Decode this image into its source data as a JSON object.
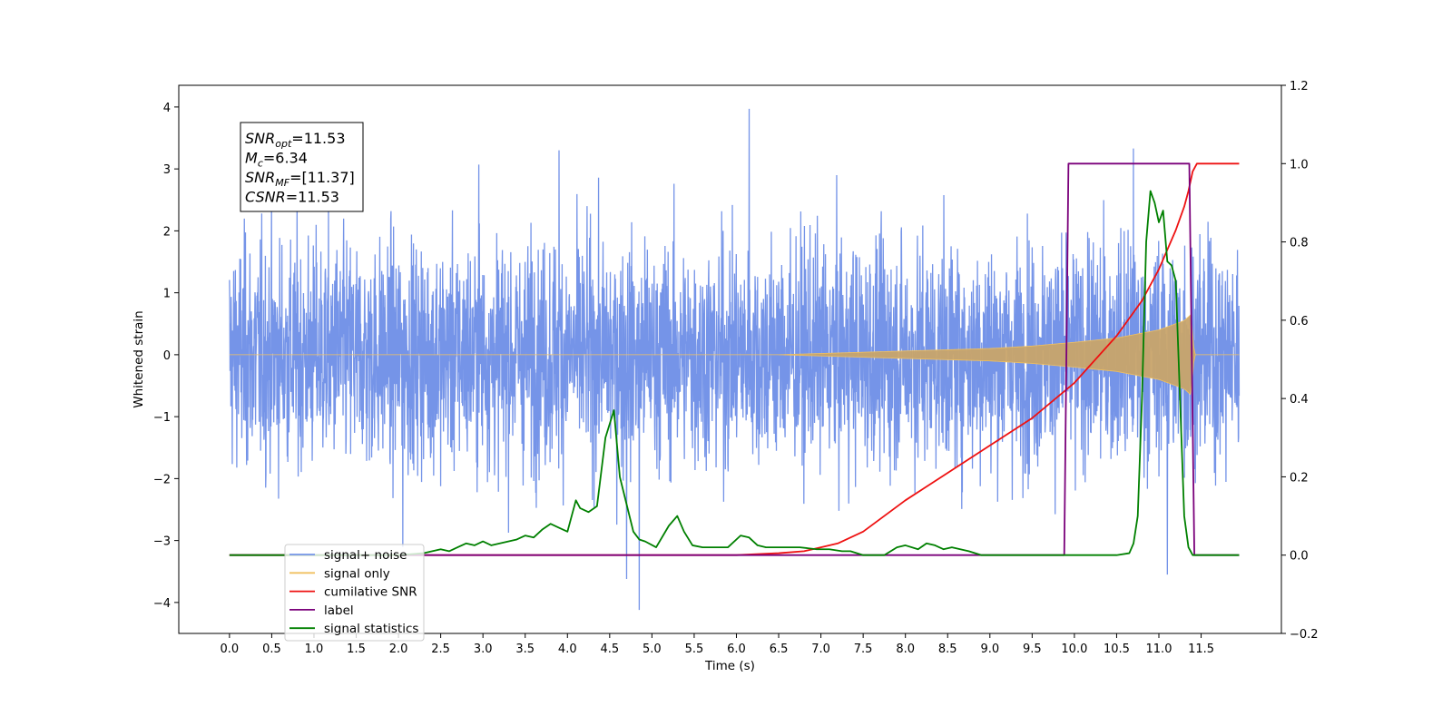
{
  "chart_data": {
    "type": "line",
    "xlabel": "Time (s)",
    "ylabel_left": "Whitened strain",
    "xlim": [
      -0.6,
      12.45
    ],
    "xticks": [
      0.0,
      0.5,
      1.0,
      1.5,
      2.0,
      2.5,
      3.0,
      3.5,
      4.0,
      4.5,
      5.0,
      5.5,
      6.0,
      6.5,
      7.0,
      7.5,
      8.0,
      8.5,
      9.0,
      9.5,
      10.0,
      10.5,
      11.0,
      11.5
    ],
    "xtick_labels": [
      "0.0",
      "0.5",
      "1.0",
      "1.5",
      "2.0",
      "2.5",
      "3.0",
      "3.5",
      "4.0",
      "4.5",
      "5.0",
      "5.5",
      "6.0",
      "6.5",
      "7.0",
      "7.5",
      "8.0",
      "8.5",
      "9.0",
      "9.5",
      "10.0",
      "10.5",
      "11.0",
      "11.5"
    ],
    "ylim_left": [
      -4.5,
      4.35
    ],
    "yticks_left": [
      -4,
      -3,
      -2,
      -1,
      0,
      1,
      2,
      3,
      4
    ],
    "ytick_labels_left": [
      "−4",
      "−3",
      "−2",
      "−1",
      "0",
      "1",
      "2",
      "3",
      "4"
    ],
    "ylim_right": [
      -0.2,
      1.2
    ],
    "yticks_right": [
      -0.2,
      0.0,
      0.2,
      0.4,
      0.6,
      0.8,
      1.0,
      1.2
    ],
    "ytick_labels_right": [
      "−0.2",
      "0.0",
      "0.2",
      "0.4",
      "0.6",
      "0.8",
      "1.0",
      "1.2"
    ],
    "annotation_lines": [
      {
        "base": "SNR",
        "sub": "opt",
        "rest": "=11.53"
      },
      {
        "base": "M",
        "sub": "c",
        "rest": "=6.34"
      },
      {
        "base": "SNR",
        "sub": "MF",
        "rest": "=[11.37]"
      },
      {
        "base": "CSNR",
        "sub": "",
        "rest": "=11.53"
      }
    ],
    "legend_position": "lower-left",
    "series": [
      {
        "name": "signal+ noise",
        "axis": "left",
        "color": "#7594e8",
        "description_values": {
          "t_start": 0.0,
          "t_end": 11.95,
          "std": 1.0,
          "extreme_spikes": [
            [
              2.95,
              3.07
            ],
            [
              3.9,
              3.3
            ],
            [
              6.15,
              3.97
            ],
            [
              10.7,
              3.33
            ],
            [
              4.85,
              -4.12
            ],
            [
              4.7,
              -3.62
            ],
            [
              2.05,
              -3.1
            ],
            [
              11.1,
              -3.55
            ]
          ]
        }
      },
      {
        "name": "signal only",
        "axis": "left",
        "color": "#f0c060",
        "description_values": {
          "envelope_t": [
            6.5,
            7.0,
            7.5,
            8.0,
            8.5,
            9.0,
            9.5,
            10.0,
            10.5,
            11.0,
            11.3,
            11.38,
            11.42
          ],
          "envelope_a": [
            0.0,
            0.02,
            0.04,
            0.06,
            0.08,
            0.1,
            0.14,
            0.2,
            0.27,
            0.4,
            0.55,
            0.65,
            0.0
          ]
        }
      },
      {
        "name": "cumilative SNR",
        "axis": "right",
        "color": "#ee1111",
        "x": [
          0.0,
          6.0,
          6.5,
          6.8,
          7.0,
          7.2,
          7.5,
          8.0,
          8.5,
          9.0,
          9.5,
          10.0,
          10.5,
          10.8,
          11.0,
          11.2,
          11.3,
          11.35,
          11.4,
          11.45,
          11.95
        ],
        "y": [
          0.0,
          0.0,
          0.005,
          0.01,
          0.02,
          0.03,
          0.06,
          0.14,
          0.21,
          0.28,
          0.35,
          0.44,
          0.56,
          0.65,
          0.73,
          0.83,
          0.89,
          0.93,
          0.98,
          1.0,
          1.0
        ]
      },
      {
        "name": "label",
        "axis": "right",
        "color": "#7a007a",
        "x": [
          0.0,
          9.88,
          9.93,
          11.36,
          11.42,
          11.95
        ],
        "y": [
          0.0,
          0.0,
          1.0,
          1.0,
          0.0,
          0.0
        ]
      },
      {
        "name": "signal statistics",
        "axis": "right",
        "color": "#008000",
        "x": [
          0.0,
          2.0,
          2.3,
          2.5,
          2.6,
          2.7,
          2.8,
          2.9,
          3.0,
          3.1,
          3.2,
          3.3,
          3.4,
          3.5,
          3.6,
          3.7,
          3.8,
          3.9,
          4.0,
          4.1,
          4.15,
          4.25,
          4.35,
          4.45,
          4.55,
          4.62,
          4.7,
          4.78,
          4.85,
          4.92,
          5.05,
          5.2,
          5.3,
          5.38,
          5.48,
          5.6,
          5.75,
          5.9,
          6.05,
          6.15,
          6.25,
          6.35,
          6.5,
          6.62,
          6.75,
          6.95,
          7.1,
          7.25,
          7.35,
          7.5,
          7.75,
          7.9,
          8.0,
          8.15,
          8.25,
          8.35,
          8.45,
          8.55,
          8.65,
          8.75,
          8.9,
          9.1,
          9.5,
          10.0,
          10.5,
          10.65,
          10.7,
          10.75,
          10.8,
          10.85,
          10.9,
          10.95,
          11.0,
          11.05,
          11.1,
          11.15,
          11.2,
          11.25,
          11.3,
          11.35,
          11.4,
          11.45,
          11.5,
          11.6,
          11.95
        ],
        "y": [
          0.0,
          0.0,
          0.005,
          0.015,
          0.01,
          0.02,
          0.03,
          0.025,
          0.035,
          0.025,
          0.03,
          0.035,
          0.04,
          0.05,
          0.045,
          0.065,
          0.08,
          0.07,
          0.06,
          0.14,
          0.12,
          0.11,
          0.125,
          0.3,
          0.37,
          0.2,
          0.13,
          0.06,
          0.04,
          0.035,
          0.02,
          0.075,
          0.1,
          0.06,
          0.025,
          0.02,
          0.02,
          0.02,
          0.05,
          0.045,
          0.025,
          0.02,
          0.02,
          0.02,
          0.02,
          0.015,
          0.015,
          0.01,
          0.01,
          0.0,
          0.0,
          0.02,
          0.025,
          0.015,
          0.03,
          0.025,
          0.015,
          0.02,
          0.015,
          0.01,
          0.0,
          0.0,
          0.0,
          0.0,
          0.0,
          0.005,
          0.03,
          0.1,
          0.4,
          0.8,
          0.93,
          0.9,
          0.85,
          0.88,
          0.75,
          0.74,
          0.7,
          0.4,
          0.1,
          0.02,
          0.0,
          0.0,
          0.0,
          0.0,
          0.0
        ]
      }
    ]
  }
}
